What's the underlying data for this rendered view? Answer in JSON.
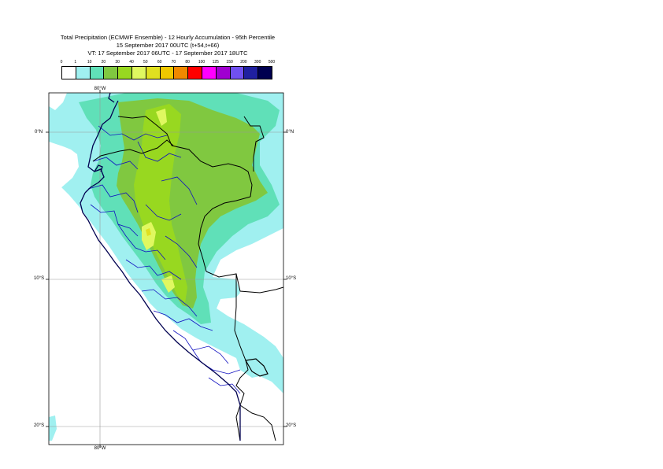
{
  "title": {
    "line1": "Total Precipitation (ECMWF Ensemble) - 12 Hourly Accumulation - 95th Percentile",
    "line2": "15 September 2017 00UTC (t+54,t+66)",
    "line3": "VT: 17 September 2017 06UTC - 17 September 2017 18UTC"
  },
  "legend": {
    "thresholds": [
      "0",
      "1",
      "10",
      "20",
      "30",
      "40",
      "50",
      "60",
      "70",
      "80",
      "100",
      "125",
      "150",
      "200",
      "300",
      "500"
    ],
    "colors": [
      "#ffffff",
      "#a0f0f0",
      "#60e0b8",
      "#80c840",
      "#98d820",
      "#e0f860",
      "#e0e020",
      "#f0c800",
      "#f08800",
      "#ff0000",
      "#ff00ff",
      "#a000d0",
      "#7050f0",
      "#2020a0",
      "#000050"
    ]
  },
  "axes": {
    "lat_labels": [
      "0°N",
      "10°S",
      "20°S"
    ],
    "lon_label": "80°W"
  },
  "colors": {
    "light_cyan": "#a0f0f0",
    "teal": "#60e0b8",
    "green": "#80c840",
    "lime": "#98d820",
    "yellow": "#e0f860",
    "border_national": "#000000",
    "border_regional": "#1010c0",
    "coast": "#000050"
  }
}
